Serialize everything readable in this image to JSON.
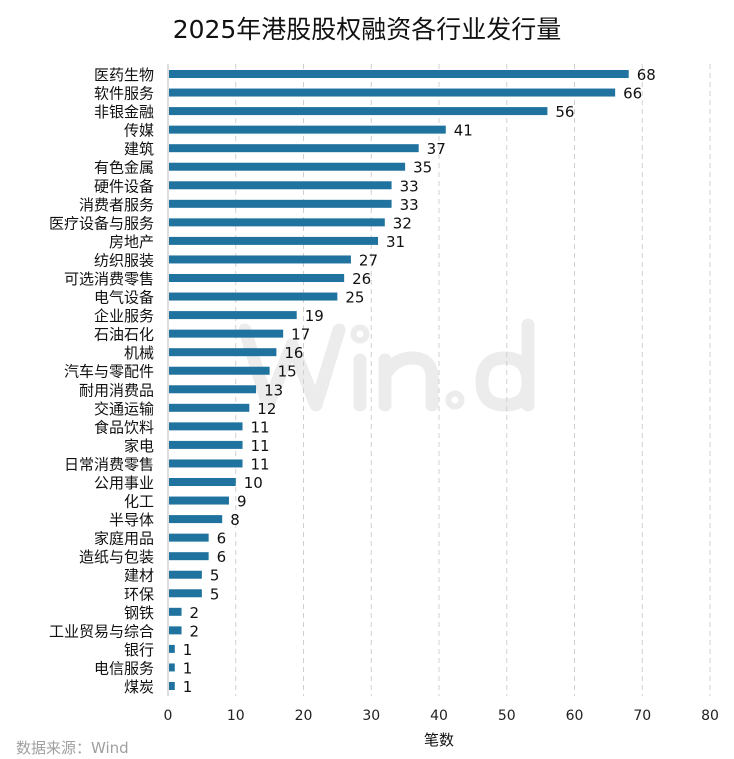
{
  "chart_data": {
    "type": "bar",
    "orientation": "horizontal",
    "title": "2025年港股股权融资各行业发行量",
    "xlabel": "笔数",
    "ylabel": "",
    "xlim": [
      0,
      80
    ],
    "xticks": [
      0,
      10,
      20,
      30,
      40,
      50,
      60,
      70,
      80
    ],
    "grid": "vertical dashed",
    "bar_color": "#21739f",
    "categories": [
      "医药生物",
      "软件服务",
      "非银金融",
      "传媒",
      "建筑",
      "有色金属",
      "硬件设备",
      "消费者服务",
      "医疗设备与服务",
      "房地产",
      "纺织服装",
      "可选消费零售",
      "电气设备",
      "企业服务",
      "石油石化",
      "机械",
      "汽车与零配件",
      "耐用消费品",
      "交通运输",
      "食品饮料",
      "家电",
      "日常消费零售",
      "公用事业",
      "化工",
      "半导体",
      "家庭用品",
      "造纸与包装",
      "建材",
      "环保",
      "钢铁",
      "工业贸易与综合",
      "银行",
      "电信服务",
      "煤炭"
    ],
    "values": [
      68,
      66,
      56,
      41,
      37,
      35,
      33,
      33,
      32,
      31,
      27,
      26,
      25,
      19,
      17,
      16,
      15,
      13,
      12,
      11,
      11,
      11,
      10,
      9,
      8,
      6,
      6,
      5,
      5,
      2,
      2,
      1,
      1,
      1
    ]
  },
  "source": "数据来源：Wind",
  "watermark": "Win.d"
}
